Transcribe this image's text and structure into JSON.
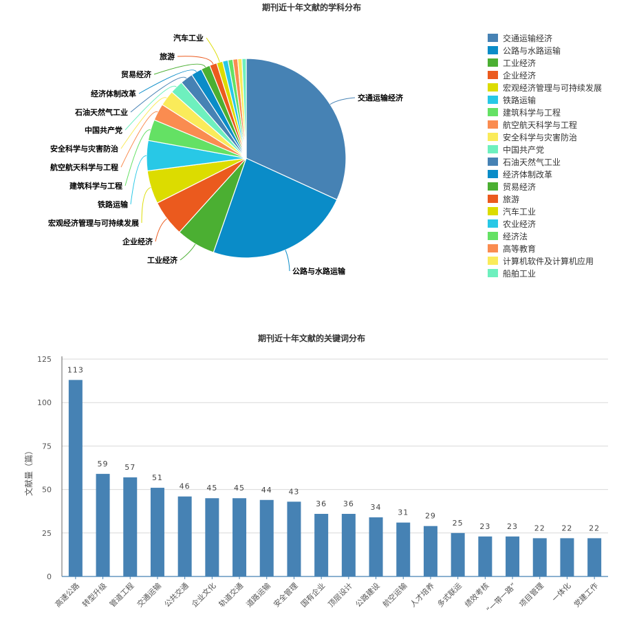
{
  "charts": [
    {
      "type": "pie",
      "title": "期刊近十年文献的学科分布",
      "slices": [
        {
          "label": "交通运输经济",
          "value": 32.5,
          "color": "#4682B4",
          "show_label": true
        },
        {
          "label": "公路与水路运输",
          "value": 24.0,
          "color": "#0A8CC8",
          "show_label": true
        },
        {
          "label": "工业经济",
          "value": 6.5,
          "color": "#4BAF32",
          "show_label": true
        },
        {
          "label": "企业经济",
          "value": 6.0,
          "color": "#EB5A1E",
          "show_label": true
        },
        {
          "label": "宏观经济管理与可持续发展",
          "value": 5.5,
          "color": "#DCDC00",
          "show_label": true
        },
        {
          "label": "铁路运输",
          "value": 5.0,
          "color": "#28C8E6",
          "show_label": true
        },
        {
          "label": "建筑科学与工程",
          "value": 3.5,
          "color": "#64E164",
          "show_label": true
        },
        {
          "label": "航空航天科学与工程",
          "value": 2.8,
          "color": "#FA8C50",
          "show_label": true
        },
        {
          "label": "安全科学与灾害防治",
          "value": 2.6,
          "color": "#FAEB5A",
          "show_label": true
        },
        {
          "label": "中国共产党",
          "value": 2.2,
          "color": "#6EF0BE",
          "show_label": true
        },
        {
          "label": "石油天然气工业",
          "value": 2.1,
          "color": "#4682B4",
          "show_label": true
        },
        {
          "label": "经济体制改革",
          "value": 1.8,
          "color": "#0A8CC8",
          "show_label": true
        },
        {
          "label": "贸易经济",
          "value": 1.5,
          "color": "#4BAF32",
          "show_label": true
        },
        {
          "label": "旅游",
          "value": 1.2,
          "color": "#EB5A1E",
          "show_label": true
        },
        {
          "label": "汽车工业",
          "value": 1.0,
          "color": "#DCDC00",
          "show_label": true
        },
        {
          "label": "农业经济",
          "value": 0.9,
          "color": "#28C8E6",
          "show_label": false
        },
        {
          "label": "经济法",
          "value": 0.8,
          "color": "#64E164",
          "show_label": false
        },
        {
          "label": "高等教育",
          "value": 0.8,
          "color": "#FA8C50",
          "show_label": false
        },
        {
          "label": "计算机软件及计算机应用",
          "value": 0.7,
          "color": "#FAEB5A",
          "show_label": false
        },
        {
          "label": "船舶工业",
          "value": 0.7,
          "color": "#6EF0BE",
          "show_label": false
        }
      ],
      "legend": "right"
    },
    {
      "type": "bar",
      "title": "期刊近十年文献的关键词分布",
      "ylabel": "文献量（篇）",
      "ylim": [
        0,
        125
      ],
      "yticks": [
        0,
        25,
        50,
        75,
        100,
        125
      ],
      "grid": true,
      "bar_color": "#4682B4",
      "categories": [
        "高速公路",
        "转型升级",
        "管道工程",
        "交通运输",
        "公共交通",
        "企业文化",
        "轨道交通",
        "道路运输",
        "安全管理",
        "国有企业",
        "顶层设计",
        "公路建设",
        "航空运输",
        "人才培养",
        "多式联运",
        "绩效考核",
        "“一带一路”",
        "项目管理",
        "一体化",
        "党建工作"
      ],
      "values": [
        113,
        59,
        57,
        51,
        46,
        45,
        45,
        44,
        43,
        36,
        36,
        34,
        31,
        29,
        25,
        23,
        23,
        22,
        22,
        22
      ]
    }
  ]
}
